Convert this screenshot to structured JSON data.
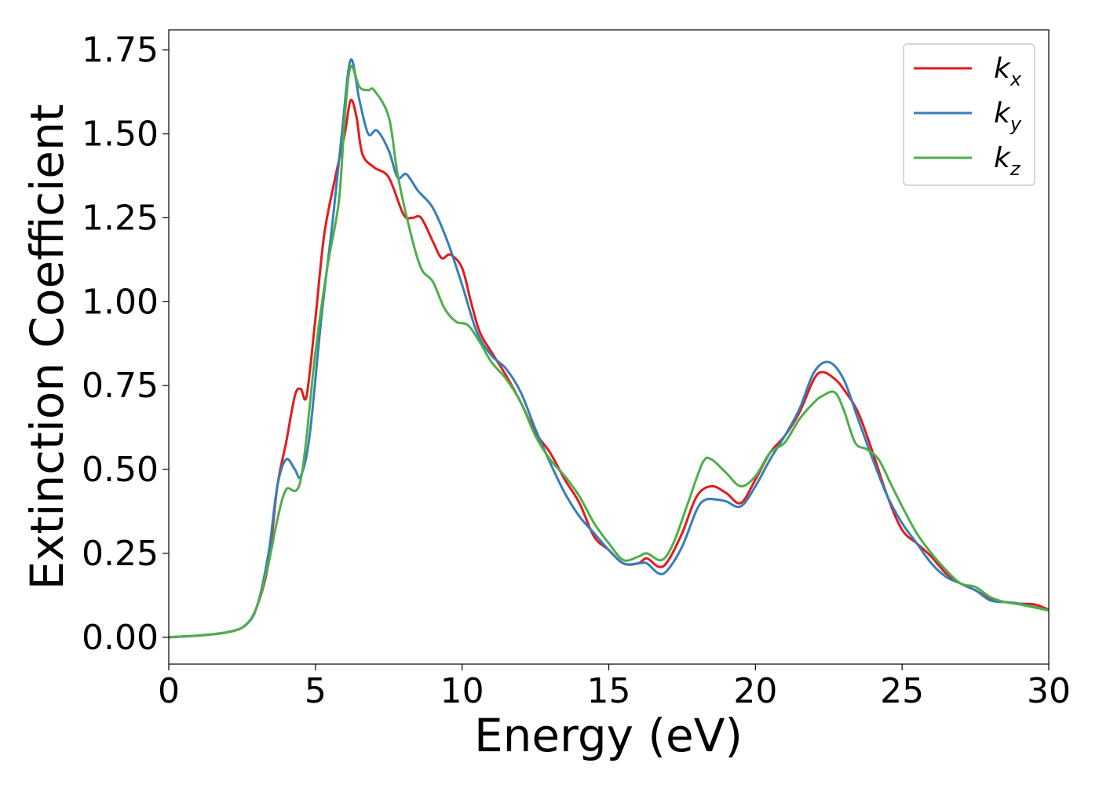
{
  "chart_data": {
    "type": "line",
    "title": "",
    "xlabel": "Energy (eV)",
    "ylabel": "Extinction Coefficient",
    "xlim": [
      0,
      30
    ],
    "ylim": [
      -0.08,
      1.81
    ],
    "xticks": [
      0,
      5,
      10,
      15,
      20,
      25,
      30
    ],
    "xtick_labels": [
      "0",
      "5",
      "10",
      "15",
      "20",
      "25",
      "30"
    ],
    "yticks": [
      0.0,
      0.25,
      0.5,
      0.75,
      1.0,
      1.25,
      1.5,
      1.75
    ],
    "ytick_labels": [
      "0.00",
      "0.25",
      "0.50",
      "0.75",
      "1.00",
      "1.25",
      "1.50",
      "1.75"
    ],
    "grid": false,
    "legend_position": "top-right",
    "series": [
      {
        "name": "k",
        "subscript": "x",
        "color": "#e41a1c",
        "points": [
          [
            0,
            0
          ],
          [
            1,
            0.005
          ],
          [
            2,
            0.015
          ],
          [
            2.6,
            0.035
          ],
          [
            3,
            0.09
          ],
          [
            3.4,
            0.22
          ],
          [
            3.7,
            0.45
          ],
          [
            4,
            0.58
          ],
          [
            4.3,
            0.72
          ],
          [
            4.5,
            0.74
          ],
          [
            4.7,
            0.72
          ],
          [
            5,
            0.95
          ],
          [
            5.3,
            1.2
          ],
          [
            5.7,
            1.38
          ],
          [
            6,
            1.5
          ],
          [
            6.2,
            1.6
          ],
          [
            6.4,
            1.55
          ],
          [
            6.6,
            1.44
          ],
          [
            7,
            1.4
          ],
          [
            7.5,
            1.37
          ],
          [
            8,
            1.26
          ],
          [
            8.3,
            1.25
          ],
          [
            8.6,
            1.25
          ],
          [
            9,
            1.18
          ],
          [
            9.3,
            1.13
          ],
          [
            9.6,
            1.14
          ],
          [
            10,
            1.1
          ],
          [
            10.3,
            1.0
          ],
          [
            10.6,
            0.91
          ],
          [
            11,
            0.85
          ],
          [
            11.5,
            0.78
          ],
          [
            12,
            0.7
          ],
          [
            12.5,
            0.61
          ],
          [
            13,
            0.55
          ],
          [
            13.5,
            0.47
          ],
          [
            14,
            0.4
          ],
          [
            14.5,
            0.3
          ],
          [
            15,
            0.26
          ],
          [
            15.5,
            0.22
          ],
          [
            16,
            0.22
          ],
          [
            16.3,
            0.235
          ],
          [
            16.7,
            0.21
          ],
          [
            17,
            0.225
          ],
          [
            17.5,
            0.31
          ],
          [
            18,
            0.42
          ],
          [
            18.5,
            0.45
          ],
          [
            19,
            0.43
          ],
          [
            19.5,
            0.4
          ],
          [
            20,
            0.47
          ],
          [
            20.5,
            0.55
          ],
          [
            21,
            0.6
          ],
          [
            21.5,
            0.67
          ],
          [
            22,
            0.77
          ],
          [
            22.3,
            0.79
          ],
          [
            22.7,
            0.77
          ],
          [
            23,
            0.74
          ],
          [
            23.5,
            0.67
          ],
          [
            24,
            0.55
          ],
          [
            24.5,
            0.42
          ],
          [
            25,
            0.32
          ],
          [
            25.5,
            0.28
          ],
          [
            26,
            0.24
          ],
          [
            26.5,
            0.19
          ],
          [
            27,
            0.16
          ],
          [
            27.5,
            0.14
          ],
          [
            28,
            0.115
          ],
          [
            28.5,
            0.105
          ],
          [
            29,
            0.1
          ],
          [
            29.5,
            0.098
          ],
          [
            30,
            0.082
          ]
        ]
      },
      {
        "name": "k",
        "subscript": "y",
        "color": "#377eb8",
        "points": [
          [
            0,
            0
          ],
          [
            1,
            0.005
          ],
          [
            2,
            0.015
          ],
          [
            2.6,
            0.035
          ],
          [
            3,
            0.09
          ],
          [
            3.4,
            0.25
          ],
          [
            3.7,
            0.45
          ],
          [
            4,
            0.53
          ],
          [
            4.3,
            0.5
          ],
          [
            4.5,
            0.48
          ],
          [
            4.8,
            0.6
          ],
          [
            5.2,
            0.95
          ],
          [
            5.6,
            1.25
          ],
          [
            5.9,
            1.5
          ],
          [
            6.2,
            1.72
          ],
          [
            6.5,
            1.6
          ],
          [
            6.8,
            1.5
          ],
          [
            7.1,
            1.51
          ],
          [
            7.5,
            1.45
          ],
          [
            7.8,
            1.37
          ],
          [
            8.1,
            1.38
          ],
          [
            8.5,
            1.33
          ],
          [
            9,
            1.28
          ],
          [
            9.5,
            1.18
          ],
          [
            10,
            1.05
          ],
          [
            10.5,
            0.91
          ],
          [
            11,
            0.84
          ],
          [
            11.5,
            0.8
          ],
          [
            12,
            0.73
          ],
          [
            12.5,
            0.62
          ],
          [
            13,
            0.52
          ],
          [
            13.5,
            0.43
          ],
          [
            14,
            0.36
          ],
          [
            14.5,
            0.31
          ],
          [
            15,
            0.26
          ],
          [
            15.5,
            0.22
          ],
          [
            16,
            0.22
          ],
          [
            16.3,
            0.22
          ],
          [
            16.7,
            0.19
          ],
          [
            17,
            0.2
          ],
          [
            17.5,
            0.27
          ],
          [
            18,
            0.38
          ],
          [
            18.3,
            0.41
          ],
          [
            18.7,
            0.41
          ],
          [
            19,
            0.405
          ],
          [
            19.5,
            0.39
          ],
          [
            20,
            0.45
          ],
          [
            20.5,
            0.53
          ],
          [
            21,
            0.6
          ],
          [
            21.5,
            0.68
          ],
          [
            22,
            0.79
          ],
          [
            22.5,
            0.82
          ],
          [
            23,
            0.77
          ],
          [
            23.5,
            0.65
          ],
          [
            24,
            0.53
          ],
          [
            24.5,
            0.42
          ],
          [
            25,
            0.34
          ],
          [
            25.5,
            0.28
          ],
          [
            26,
            0.22
          ],
          [
            26.5,
            0.18
          ],
          [
            27,
            0.16
          ],
          [
            27.5,
            0.14
          ],
          [
            28,
            0.11
          ],
          [
            28.5,
            0.105
          ],
          [
            29,
            0.1
          ],
          [
            30,
            0.08
          ]
        ]
      },
      {
        "name": "k",
        "subscript": "z",
        "color": "#4daf4a",
        "points": [
          [
            0,
            0
          ],
          [
            1,
            0.005
          ],
          [
            2,
            0.015
          ],
          [
            2.6,
            0.035
          ],
          [
            3,
            0.09
          ],
          [
            3.4,
            0.22
          ],
          [
            3.7,
            0.35
          ],
          [
            4,
            0.44
          ],
          [
            4.5,
            0.47
          ],
          [
            5,
            0.85
          ],
          [
            5.4,
            1.1
          ],
          [
            5.8,
            1.3
          ],
          [
            6,
            1.55
          ],
          [
            6.2,
            1.7
          ],
          [
            6.5,
            1.64
          ],
          [
            6.8,
            1.63
          ],
          [
            7,
            1.63
          ],
          [
            7.5,
            1.55
          ],
          [
            7.8,
            1.38
          ],
          [
            8.2,
            1.22
          ],
          [
            8.6,
            1.1
          ],
          [
            9,
            1.06
          ],
          [
            9.4,
            0.98
          ],
          [
            9.8,
            0.94
          ],
          [
            10.2,
            0.93
          ],
          [
            10.6,
            0.88
          ],
          [
            11,
            0.82
          ],
          [
            11.5,
            0.77
          ],
          [
            12,
            0.7
          ],
          [
            12.5,
            0.6
          ],
          [
            13,
            0.53
          ],
          [
            13.5,
            0.48
          ],
          [
            14,
            0.42
          ],
          [
            14.5,
            0.34
          ],
          [
            15,
            0.28
          ],
          [
            15.5,
            0.23
          ],
          [
            16,
            0.24
          ],
          [
            16.3,
            0.25
          ],
          [
            16.8,
            0.23
          ],
          [
            17.2,
            0.28
          ],
          [
            17.7,
            0.4
          ],
          [
            18.2,
            0.52
          ],
          [
            18.5,
            0.53
          ],
          [
            19,
            0.49
          ],
          [
            19.5,
            0.45
          ],
          [
            20,
            0.48
          ],
          [
            20.5,
            0.55
          ],
          [
            21,
            0.58
          ],
          [
            21.5,
            0.65
          ],
          [
            22,
            0.7
          ],
          [
            22.3,
            0.72
          ],
          [
            22.7,
            0.73
          ],
          [
            23,
            0.68
          ],
          [
            23.4,
            0.58
          ],
          [
            23.8,
            0.56
          ],
          [
            24.2,
            0.53
          ],
          [
            24.6,
            0.46
          ],
          [
            25,
            0.39
          ],
          [
            25.5,
            0.31
          ],
          [
            26,
            0.25
          ],
          [
            26.5,
            0.2
          ],
          [
            27,
            0.16
          ],
          [
            27.5,
            0.15
          ],
          [
            28,
            0.12
          ],
          [
            28.5,
            0.105
          ],
          [
            29,
            0.098
          ],
          [
            30,
            0.08
          ]
        ]
      }
    ]
  }
}
